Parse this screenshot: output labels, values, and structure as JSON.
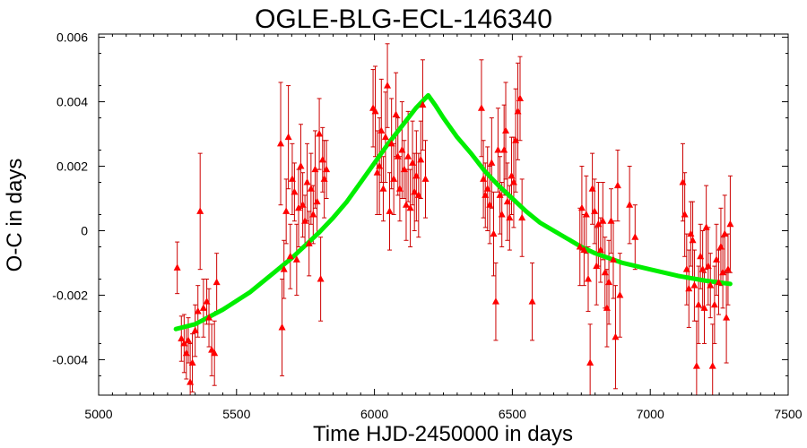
{
  "chart_data": {
    "type": "scatter",
    "title": "OGLE-BLG-ECL-146340",
    "xlabel": "Time HJD-2450000 in days",
    "ylabel": "O-C in days",
    "xlim": [
      5000,
      7500
    ],
    "ylim": [
      -0.0051,
      0.0061
    ],
    "xticks": [
      5000,
      5500,
      6000,
      6500,
      7000,
      7500
    ],
    "xtick_labels": [
      "5000",
      "5500",
      "6000",
      "6500",
      "7000",
      "7500"
    ],
    "yticks": [
      -0.004,
      -0.002,
      0,
      0.002,
      0.004,
      0.006
    ],
    "ytick_labels": [
      "-0.004",
      "-0.002",
      "0",
      "0.002",
      "0.004",
      "0.006"
    ],
    "grid": false,
    "series": [
      {
        "kind": "errorbar",
        "color": "#ff0000",
        "marker": "triangle",
        "points": [
          {
            "x": 5285,
            "y": -0.00115,
            "err": 0.0008
          },
          {
            "x": 5300,
            "y": -0.00335,
            "err": 0.0007
          },
          {
            "x": 5310,
            "y": -0.0035,
            "err": 0.0009
          },
          {
            "x": 5318,
            "y": -0.0038,
            "err": 0.0008
          },
          {
            "x": 5325,
            "y": -0.0034,
            "err": 0.0007
          },
          {
            "x": 5332,
            "y": -0.0047,
            "err": 0.0012
          },
          {
            "x": 5340,
            "y": -0.0041,
            "err": 0.0009
          },
          {
            "x": 5350,
            "y": -0.0031,
            "err": 0.0008
          },
          {
            "x": 5360,
            "y": -0.0025,
            "err": 0.0008
          },
          {
            "x": 5368,
            "y": 0.0006,
            "err": 0.0018
          },
          {
            "x": 5380,
            "y": -0.0024,
            "err": 0.0009
          },
          {
            "x": 5392,
            "y": -0.0022,
            "err": 0.0007
          },
          {
            "x": 5400,
            "y": -0.0027,
            "err": 0.0009
          },
          {
            "x": 5410,
            "y": -0.0037,
            "err": 0.0008
          },
          {
            "x": 5420,
            "y": -0.0038,
            "err": 0.001
          },
          {
            "x": 5428,
            "y": -0.0016,
            "err": 0.0009
          },
          {
            "x": 5660,
            "y": 0.0027,
            "err": 0.0019
          },
          {
            "x": 5665,
            "y": -0.003,
            "err": 0.0015
          },
          {
            "x": 5672,
            "y": -0.0012,
            "err": 0.0009
          },
          {
            "x": 5680,
            "y": 0.0006,
            "err": 0.001
          },
          {
            "x": 5688,
            "y": 0.0029,
            "err": 0.0016
          },
          {
            "x": 5695,
            "y": -0.0008,
            "err": 0.001
          },
          {
            "x": 5702,
            "y": 0.0016,
            "err": 0.0011
          },
          {
            "x": 5710,
            "y": 0.0012,
            "err": 0.0009
          },
          {
            "x": 5718,
            "y": -0.0009,
            "err": 0.0011
          },
          {
            "x": 5725,
            "y": 0.0007,
            "err": 0.0012
          },
          {
            "x": 5733,
            "y": 0.002,
            "err": 0.0013
          },
          {
            "x": 5740,
            "y": 0.0008,
            "err": 0.001
          },
          {
            "x": 5748,
            "y": 0.0003,
            "err": 0.0008
          },
          {
            "x": 5756,
            "y": 0.0015,
            "err": 0.0012
          },
          {
            "x": 5763,
            "y": -0.0004,
            "err": 0.001
          },
          {
            "x": 5770,
            "y": 0.0013,
            "err": 0.0011
          },
          {
            "x": 5778,
            "y": 0.0005,
            "err": 0.0009
          },
          {
            "x": 5785,
            "y": 0.0019,
            "err": 0.0012
          },
          {
            "x": 5792,
            "y": 0.0009,
            "err": 0.001
          },
          {
            "x": 5800,
            "y": 0.003,
            "err": 0.0011
          },
          {
            "x": 5805,
            "y": -0.0015,
            "err": 0.0013
          },
          {
            "x": 5812,
            "y": 0.0022,
            "err": 0.001
          },
          {
            "x": 5818,
            "y": 0.0016,
            "err": 0.0012
          },
          {
            "x": 5826,
            "y": 0.0019,
            "err": 0.0009
          },
          {
            "x": 5995,
            "y": 0.0038,
            "err": 0.0012
          },
          {
            "x": 6003,
            "y": 0.0037,
            "err": 0.0014
          },
          {
            "x": 6010,
            "y": 0.0018,
            "err": 0.0013
          },
          {
            "x": 6018,
            "y": 0.002,
            "err": 0.0015
          },
          {
            "x": 6025,
            "y": 0.0031,
            "err": 0.0016
          },
          {
            "x": 6032,
            "y": 0.0013,
            "err": 0.001
          },
          {
            "x": 6040,
            "y": 0.0029,
            "err": 0.0014
          },
          {
            "x": 6047,
            "y": 0.0045,
            "err": 0.0013
          },
          {
            "x": 6055,
            "y": 0.0006,
            "err": 0.0012
          },
          {
            "x": 6062,
            "y": 0.0027,
            "err": 0.0014
          },
          {
            "x": 6070,
            "y": 0.0016,
            "err": 0.0011
          },
          {
            "x": 6078,
            "y": 0.0036,
            "err": 0.0013
          },
          {
            "x": 6085,
            "y": 0.0023,
            "err": 0.0012
          },
          {
            "x": 6092,
            "y": 0.0013,
            "err": 0.001
          },
          {
            "x": 6100,
            "y": 0.0025,
            "err": 0.0015
          },
          {
            "x": 6108,
            "y": 0.0019,
            "err": 0.0009
          },
          {
            "x": 6115,
            "y": 0.0008,
            "err": 0.0011
          },
          {
            "x": 6122,
            "y": 0.0023,
            "err": 0.0014
          },
          {
            "x": 6130,
            "y": 0.0007,
            "err": 0.0012
          },
          {
            "x": 6138,
            "y": 0.0021,
            "err": 0.0013
          },
          {
            "x": 6145,
            "y": 0.0012,
            "err": 0.0012
          },
          {
            "x": 6152,
            "y": 0.0017,
            "err": 0.0014
          },
          {
            "x": 6160,
            "y": 0.0011,
            "err": 0.0013
          },
          {
            "x": 6168,
            "y": 0.0022,
            "err": 0.0012
          },
          {
            "x": 6175,
            "y": 0.0039,
            "err": 0.0014
          },
          {
            "x": 6185,
            "y": 0.0016,
            "err": 0.0012
          },
          {
            "x": 6388,
            "y": 0.0038,
            "err": 0.0015
          },
          {
            "x": 6395,
            "y": 0.0016,
            "err": 0.0012
          },
          {
            "x": 6402,
            "y": 0.0011,
            "err": 0.001
          },
          {
            "x": 6410,
            "y": 0.0013,
            "err": 0.0013
          },
          {
            "x": 6418,
            "y": 0.0008,
            "err": 0.0012
          },
          {
            "x": 6425,
            "y": 0.0021,
            "err": 0.0014
          },
          {
            "x": 6432,
            "y": -0.0001,
            "err": 0.0013
          },
          {
            "x": 6440,
            "y": -0.0022,
            "err": 0.0012
          },
          {
            "x": 6448,
            "y": 0.0025,
            "err": 0.0013
          },
          {
            "x": 6455,
            "y": 0.0011,
            "err": 0.0012
          },
          {
            "x": 6462,
            "y": 0.0005,
            "err": 0.001
          },
          {
            "x": 6470,
            "y": 0.0025,
            "err": 0.0014
          },
          {
            "x": 6476,
            "y": 0.0031,
            "err": 0.0015
          },
          {
            "x": 6482,
            "y": 0.0009,
            "err": 0.0012
          },
          {
            "x": 6490,
            "y": 0.0004,
            "err": 0.001
          },
          {
            "x": 6497,
            "y": 0.0017,
            "err": 0.0012
          },
          {
            "x": 6505,
            "y": 0.0015,
            "err": 0.0014
          },
          {
            "x": 6512,
            "y": 0.0028,
            "err": 0.0016
          },
          {
            "x": 6520,
            "y": 0.0037,
            "err": 0.0015
          },
          {
            "x": 6528,
            "y": 0.0041,
            "err": 0.0013
          },
          {
            "x": 6535,
            "y": 0.0004,
            "err": 0.0012
          },
          {
            "x": 6572,
            "y": -0.0022,
            "err": 0.0012
          },
          {
            "x": 6745,
            "y": -0.0005,
            "err": 0.0012
          },
          {
            "x": 6752,
            "y": 0.0007,
            "err": 0.0013
          },
          {
            "x": 6760,
            "y": -0.0006,
            "err": 0.0011
          },
          {
            "x": 6768,
            "y": 0.0005,
            "err": 0.0012
          },
          {
            "x": 6775,
            "y": -0.0015,
            "err": 0.001
          },
          {
            "x": 6782,
            "y": -0.0041,
            "err": 0.0012
          },
          {
            "x": 6790,
            "y": 0.0013,
            "err": 0.0011
          },
          {
            "x": 6798,
            "y": 0.0006,
            "err": 0.001
          },
          {
            "x": 6805,
            "y": -0.0011,
            "err": 0.0012
          },
          {
            "x": 6812,
            "y": 0.0002,
            "err": 0.0013
          },
          {
            "x": 6820,
            "y": -0.0006,
            "err": 0.001
          },
          {
            "x": 6828,
            "y": 0.0003,
            "err": 0.0012
          },
          {
            "x": 6836,
            "y": -0.0013,
            "err": 0.0011
          },
          {
            "x": 6843,
            "y": -0.0024,
            "err": 0.0012
          },
          {
            "x": 6850,
            "y": -0.0016,
            "err": 0.0013
          },
          {
            "x": 6858,
            "y": 0.0003,
            "err": 0.001
          },
          {
            "x": 6866,
            "y": -0.0009,
            "err": 0.0012
          },
          {
            "x": 6874,
            "y": -0.0033,
            "err": 0.0016
          },
          {
            "x": 6882,
            "y": 0.0014,
            "err": 0.0011
          },
          {
            "x": 6890,
            "y": -0.002,
            "err": 0.0013
          },
          {
            "x": 6925,
            "y": 0.0008,
            "err": 0.0012
          },
          {
            "x": 6945,
            "y": -0.0002,
            "err": 0.001
          },
          {
            "x": 7118,
            "y": 0.0015,
            "err": 0.0012
          },
          {
            "x": 7125,
            "y": 0.0005,
            "err": 0.0013
          },
          {
            "x": 7132,
            "y": -0.0012,
            "err": 0.0011
          },
          {
            "x": 7140,
            "y": -0.0018,
            "err": 0.0012
          },
          {
            "x": 7147,
            "y": -0.0001,
            "err": 0.001
          },
          {
            "x": 7154,
            "y": -0.0003,
            "err": 0.0012
          },
          {
            "x": 7160,
            "y": -0.0017,
            "err": 0.0011
          },
          {
            "x": 7168,
            "y": -0.0042,
            "err": 0.0014
          },
          {
            "x": 7175,
            "y": -0.0023,
            "err": 0.0012
          },
          {
            "x": 7182,
            "y": -0.0008,
            "err": 0.001
          },
          {
            "x": 7190,
            "y": -0.0012,
            "err": 0.0012
          },
          {
            "x": 7196,
            "y": -0.0024,
            "err": 0.0011
          },
          {
            "x": 7203,
            "y": 0.0001,
            "err": 0.0013
          },
          {
            "x": 7210,
            "y": -0.0011,
            "err": 0.0012
          },
          {
            "x": 7218,
            "y": -0.0017,
            "err": 0.001
          },
          {
            "x": 7226,
            "y": -0.0042,
            "err": 0.0013
          },
          {
            "x": 7233,
            "y": -0.0023,
            "err": 0.0012
          },
          {
            "x": 7240,
            "y": -0.0009,
            "err": 0.0011
          },
          {
            "x": 7248,
            "y": -0.0016,
            "err": 0.001
          },
          {
            "x": 7256,
            "y": -0.0005,
            "err": 0.0012
          },
          {
            "x": 7263,
            "y": -0.0013,
            "err": 0.0011
          },
          {
            "x": 7270,
            "y": -0.0001,
            "err": 0.0012
          },
          {
            "x": 7276,
            "y": -0.0027,
            "err": 0.0014
          },
          {
            "x": 7282,
            "y": -0.0012,
            "err": 0.0011
          },
          {
            "x": 7290,
            "y": 0.0002,
            "err": 0.0015
          }
        ]
      },
      {
        "kind": "line",
        "color": "#00ee00",
        "x": [
          5280,
          5350,
          5450,
          5550,
          5650,
          5700,
          5750,
          5800,
          5850,
          5900,
          5950,
          6000,
          6050,
          6100,
          6150,
          6195,
          6220,
          6250,
          6300,
          6350,
          6400,
          6450,
          6500,
          6550,
          6600,
          6650,
          6700,
          6750,
          6800,
          6900,
          7000,
          7100,
          7200,
          7290
        ],
        "y": [
          -0.00305,
          -0.0029,
          -0.00245,
          -0.0019,
          -0.0012,
          -0.00085,
          -0.00045,
          -5e-05,
          0.0004,
          0.0009,
          0.0015,
          0.0021,
          0.0027,
          0.00325,
          0.0038,
          0.0042,
          0.0039,
          0.0035,
          0.0029,
          0.0024,
          0.00185,
          0.0014,
          0.001,
          0.0006,
          0.00025,
          0.0,
          -0.00025,
          -0.0005,
          -0.0007,
          -0.001,
          -0.0012,
          -0.0014,
          -0.00155,
          -0.00165
        ]
      }
    ]
  }
}
